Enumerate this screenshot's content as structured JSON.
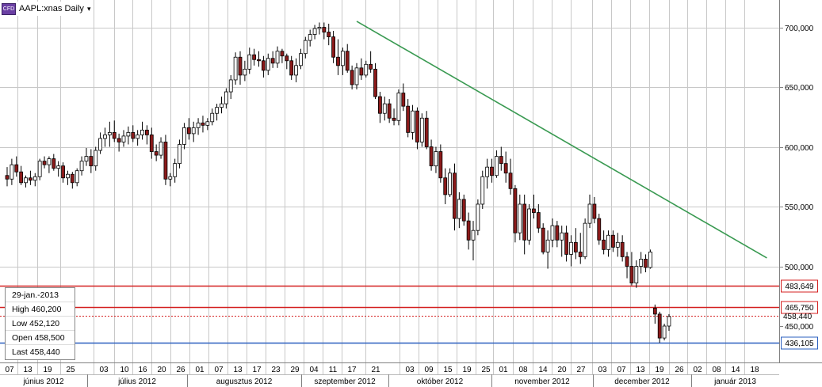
{
  "title": {
    "badge": "CFD",
    "symbol": "AAPL:xnas Daily",
    "caret": "▾"
  },
  "info_box": {
    "date": "29-jan.-2013",
    "high": "High   460,200",
    "low": "Low    452,120",
    "open": "Open  458,500",
    "last": "Last   458,440"
  },
  "colors": {
    "up": "#ffffff",
    "down": "#8b1a1a",
    "trend": "#3a9a52",
    "resistance": "#d42020",
    "support": "#2a5fbf",
    "grid": "#c8c8c8"
  },
  "chart_data": {
    "type": "candlestick",
    "y_axis": {
      "ticks": [
        "700,000",
        "650,000",
        "600,000",
        "550,000",
        "500,000",
        "450,000"
      ],
      "values": [
        700,
        650,
        600,
        550,
        500,
        450
      ]
    },
    "x_day_labels": [
      "07",
      "13",
      "19",
      "25",
      "03",
      "10",
      "16",
      "20",
      "26",
      "01",
      "07",
      "13",
      "17",
      "23",
      "29",
      "04",
      "11",
      "17",
      "21",
      "03",
      "09",
      "15",
      "19",
      "25",
      "01",
      "08",
      "14",
      "20",
      "27",
      "03",
      "07",
      "13",
      "19",
      "26",
      "02",
      "08",
      "14",
      "18"
    ],
    "month_labels": [
      "június 2012",
      "július 2012",
      "augusztus 2012",
      "szeptember 2012",
      "október 2012",
      "november 2012",
      "december 2012",
      "január 2013"
    ],
    "levels": [
      {
        "label": "483,649",
        "value": 483.649,
        "style": "solid-red"
      },
      {
        "label": "465,750",
        "value": 465.75,
        "style": "solid-red"
      },
      {
        "label": "458,440",
        "value": 458.44,
        "style": "dotted-red"
      },
      {
        "label": "436,105",
        "value": 436.105,
        "style": "solid-blue"
      }
    ],
    "trendline": {
      "from": {
        "index": 75,
        "value": 705
      },
      "to": {
        "index": 163,
        "value": 507
      }
    },
    "candles": [
      [
        576,
        583,
        567,
        573
      ],
      [
        573,
        590,
        568,
        585
      ],
      [
        585,
        592,
        575,
        579
      ],
      [
        579,
        584,
        568,
        570
      ],
      [
        570,
        576,
        566,
        574
      ],
      [
        574,
        580,
        568,
        572
      ],
      [
        572,
        578,
        567,
        575
      ],
      [
        575,
        590,
        572,
        588
      ],
      [
        588,
        592,
        582,
        585
      ],
      [
        585,
        592,
        578,
        590
      ],
      [
        590,
        594,
        580,
        582
      ],
      [
        582,
        588,
        575,
        584
      ],
      [
        584,
        587,
        570,
        574
      ],
      [
        574,
        580,
        568,
        577
      ],
      [
        577,
        579,
        565,
        570
      ],
      [
        570,
        582,
        567,
        580
      ],
      [
        580,
        592,
        576,
        588
      ],
      [
        588,
        599,
        584,
        592
      ],
      [
        592,
        598,
        578,
        584
      ],
      [
        584,
        600,
        580,
        597
      ],
      [
        597,
        612,
        594,
        607
      ],
      [
        607,
        616,
        600,
        610
      ],
      [
        610,
        621,
        600,
        612
      ],
      [
        612,
        622,
        604,
        607
      ],
      [
        607,
        611,
        596,
        604
      ],
      [
        604,
        614,
        600,
        609
      ],
      [
        609,
        617,
        602,
        612
      ],
      [
        612,
        618,
        604,
        607
      ],
      [
        607,
        614,
        601,
        610
      ],
      [
        610,
        621,
        606,
        614
      ],
      [
        614,
        618,
        602,
        610
      ],
      [
        610,
        616,
        590,
        596
      ],
      [
        596,
        602,
        588,
        593
      ],
      [
        593,
        608,
        590,
        604
      ],
      [
        604,
        610,
        568,
        573
      ],
      [
        573,
        578,
        567,
        575
      ],
      [
        575,
        590,
        570,
        586
      ],
      [
        586,
        606,
        582,
        602
      ],
      [
        602,
        620,
        598,
        616
      ],
      [
        616,
        624,
        606,
        611
      ],
      [
        611,
        621,
        604,
        616
      ],
      [
        616,
        624,
        610,
        620
      ],
      [
        620,
        626,
        612,
        618
      ],
      [
        618,
        624,
        614,
        621
      ],
      [
        621,
        632,
        618,
        628
      ],
      [
        628,
        636,
        622,
        633
      ],
      [
        633,
        642,
        628,
        636
      ],
      [
        636,
        649,
        632,
        646
      ],
      [
        646,
        660,
        640,
        656
      ],
      [
        656,
        679,
        652,
        675
      ],
      [
        675,
        680,
        652,
        660
      ],
      [
        660,
        672,
        655,
        665
      ],
      [
        665,
        683,
        661,
        677
      ],
      [
        677,
        682,
        668,
        673
      ],
      [
        673,
        680,
        667,
        672
      ],
      [
        672,
        676,
        658,
        664
      ],
      [
        664,
        678,
        660,
        674
      ],
      [
        674,
        680,
        666,
        670
      ],
      [
        670,
        684,
        666,
        680
      ],
      [
        680,
        682,
        670,
        676
      ],
      [
        676,
        678,
        665,
        672
      ],
      [
        672,
        676,
        656,
        660
      ],
      [
        660,
        674,
        654,
        668
      ],
      [
        668,
        682,
        665,
        678
      ],
      [
        678,
        692,
        674,
        689
      ],
      [
        689,
        698,
        684,
        694
      ],
      [
        694,
        702,
        690,
        699
      ],
      [
        699,
        704,
        694,
        700
      ],
      [
        700,
        704,
        690,
        696
      ],
      [
        696,
        703,
        685,
        692
      ],
      [
        692,
        697,
        670,
        675
      ],
      [
        675,
        690,
        660,
        668
      ],
      [
        668,
        683,
        660,
        680
      ],
      [
        680,
        686,
        662,
        664
      ],
      [
        664,
        668,
        648,
        652
      ],
      [
        652,
        670,
        648,
        666
      ],
      [
        666,
        674,
        656,
        660
      ],
      [
        660,
        672,
        658,
        669
      ],
      [
        669,
        680,
        662,
        665
      ],
      [
        665,
        670,
        640,
        642
      ],
      [
        642,
        646,
        620,
        628
      ],
      [
        628,
        642,
        622,
        636
      ],
      [
        636,
        640,
        620,
        624
      ],
      [
        624,
        632,
        618,
        622
      ],
      [
        622,
        648,
        618,
        645
      ],
      [
        645,
        653,
        630,
        634
      ],
      [
        634,
        640,
        608,
        612
      ],
      [
        612,
        635,
        606,
        630
      ],
      [
        630,
        633,
        598,
        604
      ],
      [
        604,
        628,
        600,
        624
      ],
      [
        624,
        630,
        598,
        600
      ],
      [
        600,
        606,
        580,
        584
      ],
      [
        584,
        600,
        578,
        596
      ],
      [
        596,
        602,
        570,
        574
      ],
      [
        574,
        582,
        552,
        560
      ],
      [
        560,
        582,
        558,
        578
      ],
      [
        578,
        586,
        530,
        540
      ],
      [
        540,
        562,
        532,
        556
      ],
      [
        556,
        560,
        534,
        538
      ],
      [
        538,
        545,
        514,
        522
      ],
      [
        522,
        538,
        505,
        530
      ],
      [
        530,
        556,
        526,
        552
      ],
      [
        552,
        580,
        548,
        575
      ],
      [
        575,
        590,
        565,
        583
      ],
      [
        583,
        590,
        570,
        576
      ],
      [
        576,
        597,
        574,
        592
      ],
      [
        592,
        600,
        580,
        586
      ],
      [
        586,
        596,
        570,
        578
      ],
      [
        578,
        590,
        560,
        565
      ],
      [
        565,
        568,
        520,
        528
      ],
      [
        528,
        560,
        522,
        552
      ],
      [
        552,
        560,
        510,
        522
      ],
      [
        522,
        552,
        518,
        548
      ],
      [
        548,
        560,
        540,
        545
      ],
      [
        545,
        552,
        528,
        532
      ],
      [
        532,
        536,
        510,
        512
      ],
      [
        512,
        530,
        498,
        522
      ],
      [
        522,
        540,
        516,
        534
      ],
      [
        534,
        538,
        516,
        522
      ],
      [
        522,
        534,
        508,
        528
      ],
      [
        528,
        534,
        504,
        510
      ],
      [
        510,
        526,
        500,
        520
      ],
      [
        520,
        532,
        506,
        512
      ],
      [
        512,
        528,
        502,
        508
      ],
      [
        508,
        540,
        506,
        536
      ],
      [
        536,
        560,
        532,
        552
      ],
      [
        552,
        558,
        536,
        540
      ],
      [
        540,
        544,
        518,
        522
      ],
      [
        522,
        530,
        510,
        514
      ],
      [
        514,
        530,
        508,
        526
      ],
      [
        526,
        530,
        512,
        516
      ],
      [
        516,
        528,
        508,
        520
      ],
      [
        520,
        526,
        504,
        508
      ],
      [
        508,
        512,
        490,
        500
      ],
      [
        500,
        512,
        484,
        486
      ],
      [
        486,
        505,
        482,
        500
      ],
      [
        500,
        512,
        494,
        506
      ],
      [
        506,
        510,
        495,
        499
      ],
      [
        499,
        514,
        498,
        512
      ],
      [
        465,
        468,
        452,
        460
      ],
      [
        460,
        462,
        436,
        440
      ],
      [
        440,
        452,
        438,
        450
      ],
      [
        450,
        460,
        446,
        458
      ]
    ]
  }
}
